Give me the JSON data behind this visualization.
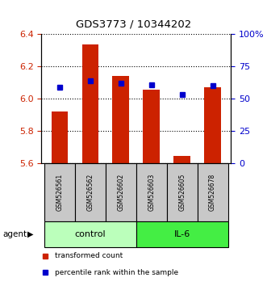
{
  "title": "GDS3773 / 10344202",
  "samples": [
    "GSM526561",
    "GSM526562",
    "GSM526602",
    "GSM526603",
    "GSM526605",
    "GSM526678"
  ],
  "bar_values": [
    5.92,
    6.335,
    6.14,
    6.055,
    5.645,
    6.07
  ],
  "bar_bottom": 5.6,
  "blue_values_left": [
    6.07,
    6.11,
    6.095,
    6.085,
    6.025,
    6.083
  ],
  "bar_color": "#cc2200",
  "blue_color": "#0000cc",
  "ylim_left": [
    5.6,
    6.4
  ],
  "ylim_right": [
    0,
    100
  ],
  "yticks_left": [
    5.6,
    5.8,
    6.0,
    6.2,
    6.4
  ],
  "yticks_right": [
    0,
    25,
    50,
    75,
    100
  ],
  "ytick_labels_right": [
    "0",
    "25",
    "50",
    "75",
    "100%"
  ],
  "groups": [
    {
      "label": "control",
      "indices": [
        0,
        1,
        2
      ],
      "color": "#bbffbb"
    },
    {
      "label": "IL-6",
      "indices": [
        3,
        4,
        5
      ],
      "color": "#44ee44"
    }
  ],
  "agent_label": "agent",
  "legend_items": [
    {
      "label": "transformed count",
      "color": "#cc2200"
    },
    {
      "label": "percentile rank within the sample",
      "color": "#0000cc"
    }
  ],
  "bar_width": 0.55,
  "background_sample": "#c8c8c8"
}
